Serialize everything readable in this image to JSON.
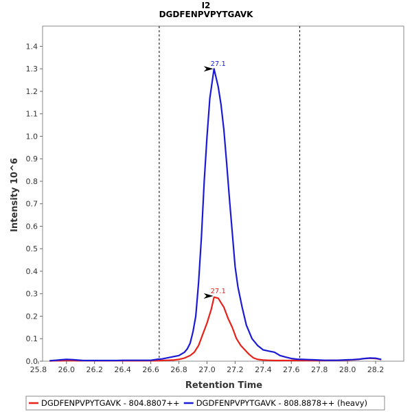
{
  "chart_data": {
    "type": "line",
    "title": "I2",
    "subtitle": "DGDFENPVPYTGAVK",
    "xlabel": "Retention Time",
    "ylabel": "Intensity 10^6",
    "xlim": [
      25.83,
      28.4
    ],
    "ylim": [
      0,
      1.49
    ],
    "x_ticks": [
      "25.8",
      "26.0",
      "26.2",
      "26.4",
      "26.6",
      "26.8",
      "27.0",
      "27.2",
      "27.4",
      "27.6",
      "27.8",
      "28.0",
      "28.2"
    ],
    "y_ticks": [
      "0.0",
      "0.1",
      "0.2",
      "0.3",
      "0.4",
      "0.5",
      "0.6",
      "0.7",
      "0.8",
      "0.9",
      "1.0",
      "1.1",
      "1.2",
      "1.3",
      "1.4"
    ],
    "integration_bounds": [
      26.66,
      27.66
    ],
    "colors": {
      "light": "#e8201a",
      "heavy": "#1a1ad6"
    },
    "series": [
      {
        "name": "DGDFENPVPYTGAVK - 804.8807++",
        "color": "#e8201a",
        "peak_label": "27.1",
        "peak_x": 27.05,
        "peak_y": 0.29,
        "x": [
          25.88,
          25.92,
          25.96,
          26.0,
          26.04,
          26.08,
          26.12,
          26.16,
          26.2,
          26.24,
          26.28,
          26.32,
          26.36,
          26.4,
          26.44,
          26.48,
          26.52,
          26.56,
          26.6,
          26.64,
          26.68,
          26.72,
          26.76,
          26.8,
          26.84,
          26.88,
          26.91,
          26.94,
          26.97,
          27.0,
          27.03,
          27.05,
          27.08,
          27.12,
          27.15,
          27.18,
          27.21,
          27.24,
          27.27,
          27.3,
          27.33,
          27.36,
          27.4,
          27.44,
          27.48,
          27.52,
          27.56,
          27.6,
          27.64,
          27.68,
          27.72,
          27.76,
          27.8,
          27.84,
          27.88,
          27.92,
          27.96,
          28.0,
          28.04,
          28.08,
          28.12,
          28.16,
          28.2,
          28.24
        ],
        "y": [
          0.001,
          0.002,
          0.002,
          0.003,
          0.003,
          0.002,
          0.002,
          0.002,
          0.002,
          0.002,
          0.002,
          0.002,
          0.002,
          0.002,
          0.002,
          0.002,
          0.002,
          0.002,
          0.002,
          0.002,
          0.003,
          0.004,
          0.005,
          0.008,
          0.014,
          0.025,
          0.04,
          0.07,
          0.12,
          0.17,
          0.23,
          0.285,
          0.28,
          0.24,
          0.19,
          0.15,
          0.1,
          0.07,
          0.05,
          0.03,
          0.015,
          0.008,
          0.005,
          0.004,
          0.003,
          0.003,
          0.003,
          0.003,
          0.003,
          0.003,
          0.003,
          0.003,
          0.003,
          0.003,
          0.004,
          0.004,
          0.004,
          0.005,
          0.006,
          0.008,
          0.012,
          0.013,
          0.012,
          0.007
        ]
      },
      {
        "name": "DGDFENPVPYTGAVK - 808.8878++ (heavy)",
        "color": "#1a1ad6",
        "peak_label": "27.1",
        "peak_x": 27.05,
        "peak_y": 1.3,
        "x": [
          25.88,
          25.92,
          25.96,
          26.0,
          26.04,
          26.08,
          26.12,
          26.16,
          26.2,
          26.24,
          26.28,
          26.32,
          26.36,
          26.4,
          26.44,
          26.48,
          26.52,
          26.56,
          26.6,
          26.64,
          26.68,
          26.72,
          26.76,
          26.8,
          26.84,
          26.86,
          26.88,
          26.9,
          26.92,
          26.94,
          26.96,
          26.98,
          27.0,
          27.02,
          27.05,
          27.08,
          27.1,
          27.12,
          27.14,
          27.16,
          27.18,
          27.2,
          27.22,
          27.25,
          27.28,
          27.32,
          27.36,
          27.4,
          27.44,
          27.48,
          27.52,
          27.56,
          27.6,
          27.64,
          27.68,
          27.72,
          27.76,
          27.8,
          27.84,
          27.88,
          27.92,
          27.96,
          28.0,
          28.04,
          28.08,
          28.12,
          28.16,
          28.2,
          28.24
        ],
        "y": [
          0.002,
          0.004,
          0.006,
          0.008,
          0.007,
          0.005,
          0.003,
          0.003,
          0.003,
          0.003,
          0.003,
          0.003,
          0.003,
          0.004,
          0.004,
          0.004,
          0.004,
          0.004,
          0.004,
          0.008,
          0.01,
          0.015,
          0.02,
          0.025,
          0.04,
          0.055,
          0.08,
          0.13,
          0.2,
          0.35,
          0.55,
          0.8,
          1.0,
          1.17,
          1.3,
          1.22,
          1.14,
          1.03,
          0.88,
          0.72,
          0.57,
          0.42,
          0.33,
          0.24,
          0.16,
          0.1,
          0.07,
          0.05,
          0.045,
          0.04,
          0.025,
          0.018,
          0.012,
          0.009,
          0.008,
          0.007,
          0.006,
          0.005,
          0.004,
          0.004,
          0.004,
          0.005,
          0.006,
          0.007,
          0.009,
          0.012,
          0.014,
          0.013,
          0.008
        ]
      }
    ],
    "legend_placement": "bottom"
  }
}
